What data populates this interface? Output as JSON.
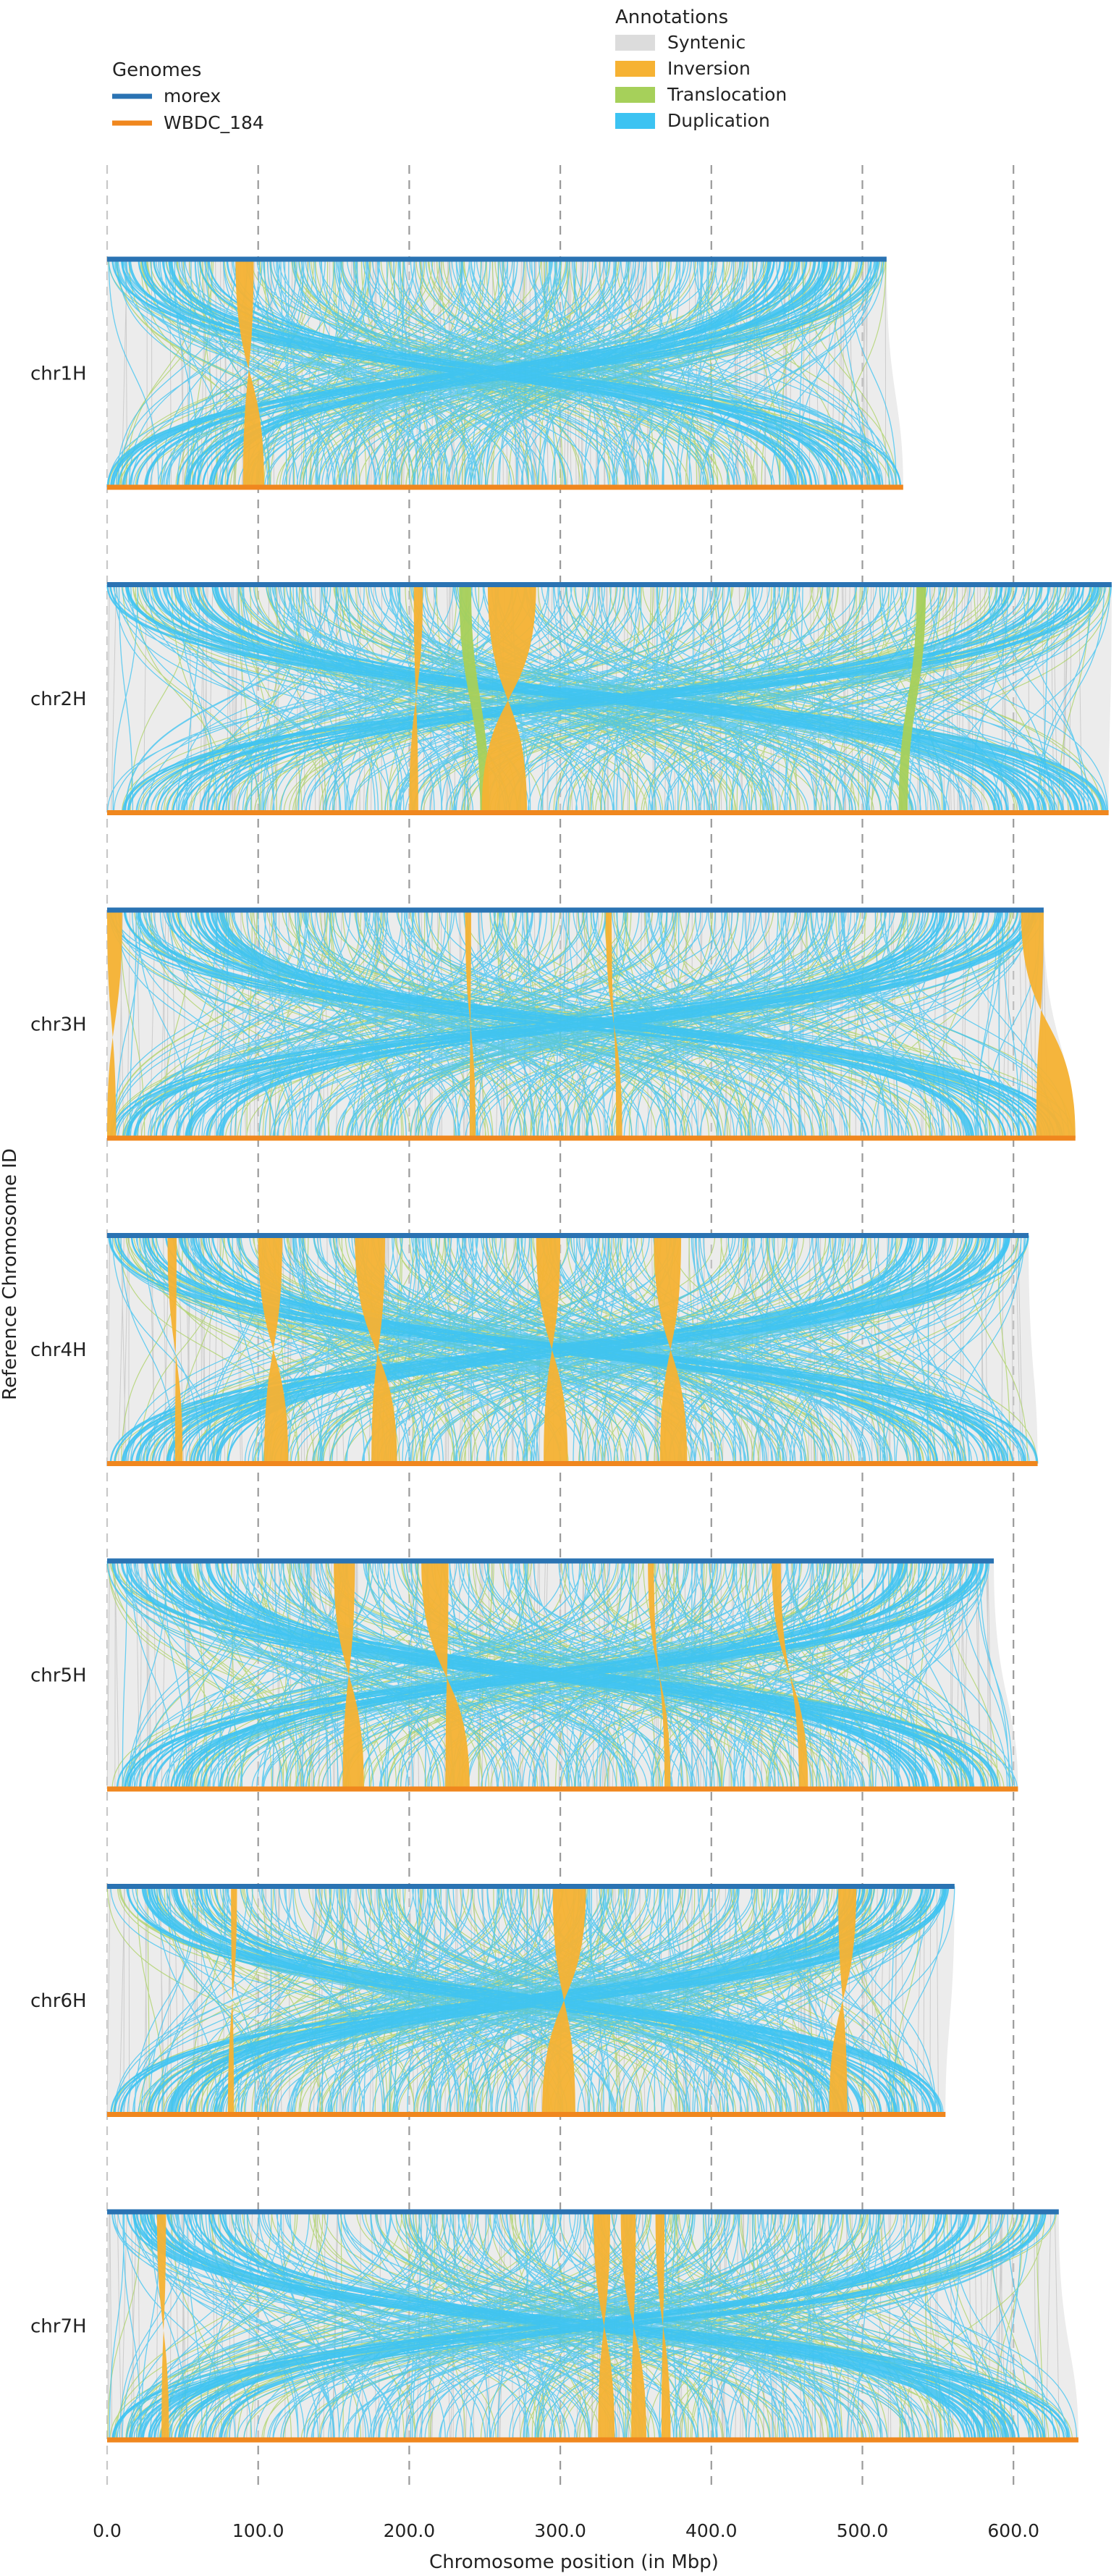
{
  "chart_data": {
    "type": "synteny",
    "xlabel": "Chromosome position (in Mbp)",
    "ylabel": "Reference Chromosome ID",
    "x_ticks": [
      "0.0",
      "100.0",
      "200.0",
      "300.0",
      "400.0",
      "500.0",
      "600.0"
    ],
    "x_tick_values": [
      0,
      100,
      200,
      300,
      400,
      500,
      600
    ],
    "xlim": [
      0,
      665
    ],
    "grid": "vertical dashed",
    "genomes_legend": {
      "title": "Genomes",
      "placement": "top-left",
      "entries": [
        {
          "name": "morex",
          "color": "#2a73b3"
        },
        {
          "name": "WBDC_184",
          "color": "#f0871e"
        }
      ]
    },
    "annotations_legend": {
      "title": "Annotations",
      "placement": "top-center",
      "entries": [
        {
          "name": "Syntenic",
          "color": "#dcdcdc"
        },
        {
          "name": "Inversion",
          "color": "#f6b233"
        },
        {
          "name": "Translocation",
          "color": "#a6d05a"
        },
        {
          "name": "Duplication",
          "color": "#3cc3f2"
        }
      ]
    },
    "chromosomes": [
      {
        "id": "chr1H",
        "ref_length": 516,
        "qry_length": 527,
        "inversions": [
          [
            85,
            97,
            90,
            104
          ]
        ],
        "translocations": []
      },
      {
        "id": "chr2H",
        "ref_length": 665,
        "qry_length": 663,
        "inversions": [
          [
            252,
            284,
            248,
            278
          ],
          [
            203,
            209,
            200,
            206
          ]
        ],
        "translocations": [
          [
            233,
            241,
            247,
            253
          ],
          [
            536,
            542,
            524,
            530
          ]
        ]
      },
      {
        "id": "chr3H",
        "ref_length": 620,
        "qry_length": 641,
        "inversions": [
          [
            0,
            10,
            0,
            6
          ],
          [
            605,
            620,
            615,
            641
          ],
          [
            237,
            241,
            240,
            244
          ],
          [
            330,
            334,
            337,
            341
          ]
        ],
        "translocations": []
      },
      {
        "id": "chr4H",
        "ref_length": 610,
        "qry_length": 616,
        "inversions": [
          [
            100,
            116,
            104,
            120
          ],
          [
            164,
            184,
            175,
            192
          ],
          [
            284,
            300,
            289,
            305
          ],
          [
            362,
            380,
            366,
            384
          ],
          [
            40,
            46,
            45,
            50
          ]
        ],
        "translocations": []
      },
      {
        "id": "chr5H",
        "ref_length": 587,
        "qry_length": 603,
        "inversions": [
          [
            150,
            164,
            156,
            170
          ],
          [
            208,
            226,
            224,
            240
          ],
          [
            358,
            362,
            369,
            373
          ],
          [
            440,
            446,
            458,
            464
          ]
        ],
        "translocations": []
      },
      {
        "id": "chr6H",
        "ref_length": 561,
        "qry_length": 555,
        "inversions": [
          [
            295,
            317,
            288,
            310
          ],
          [
            484,
            496,
            478,
            490
          ],
          [
            82,
            86,
            80,
            84
          ]
        ],
        "translocations": []
      },
      {
        "id": "chr7H",
        "ref_length": 630,
        "qry_length": 643,
        "inversions": [
          [
            322,
            333,
            325,
            336
          ],
          [
            340,
            350,
            347,
            357
          ],
          [
            363,
            369,
            367,
            373
          ],
          [
            33,
            39,
            36,
            41
          ]
        ],
        "translocations": []
      }
    ]
  }
}
